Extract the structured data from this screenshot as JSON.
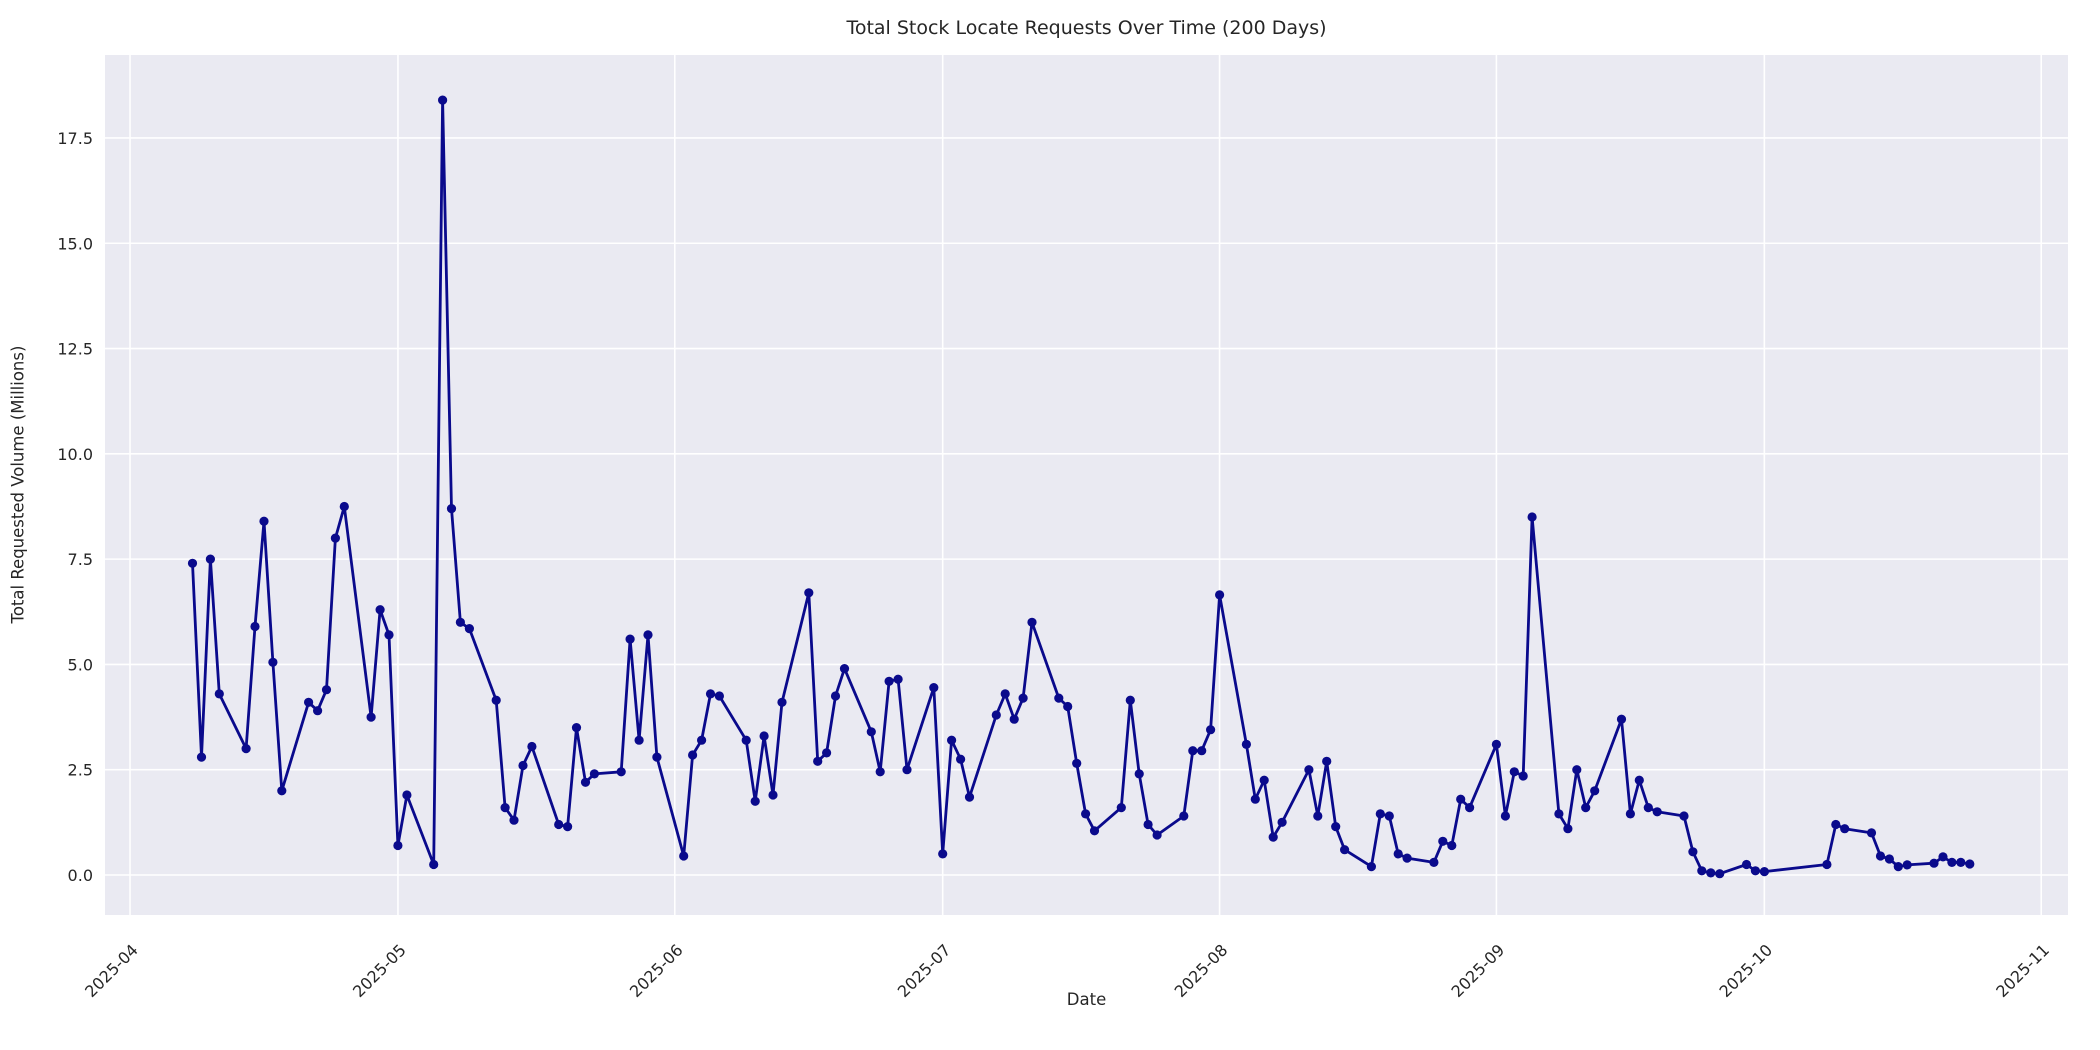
{
  "title": "Total Stock Locate Requests Over Time (200 Days)",
  "chart_data": {
    "type": "line",
    "title": "Total Stock Locate Requests Over Time (200 Days)",
    "xlabel": "Date",
    "ylabel": "Total Requested Volume (Millions)",
    "legend": "none",
    "grid": true,
    "background_color": "#eaeaf2",
    "gridline_color": "#ffffff",
    "line_color": "#0a0a8c",
    "text_color": "#262626",
    "marker": "o",
    "x_tick_labels": [
      "2025-04",
      "2025-05",
      "2025-06",
      "2025-07",
      "2025-08",
      "2025-09",
      "2025-10",
      "2025-11"
    ],
    "y_ticks": [
      0.0,
      2.5,
      5.0,
      7.5,
      10.0,
      12.5,
      15.0,
      17.5
    ],
    "ylim": [
      -0.95,
      19.47
    ],
    "xlim_days_from_2025_04_01": [
      -2.8,
      217.0
    ],
    "x": [
      "2025-04-08",
      "2025-04-09",
      "2025-04-10",
      "2025-04-11",
      "2025-04-14",
      "2025-04-15",
      "2025-04-16",
      "2025-04-17",
      "2025-04-18",
      "2025-04-21",
      "2025-04-22",
      "2025-04-23",
      "2025-04-24",
      "2025-04-25",
      "2025-04-28",
      "2025-04-29",
      "2025-04-30",
      "2025-05-01",
      "2025-05-02",
      "2025-05-05",
      "2025-05-06",
      "2025-05-07",
      "2025-05-08",
      "2025-05-09",
      "2025-05-12",
      "2025-05-13",
      "2025-05-14",
      "2025-05-15",
      "2025-05-16",
      "2025-05-19",
      "2025-05-20",
      "2025-05-21",
      "2025-05-22",
      "2025-05-23",
      "2025-05-26",
      "2025-05-27",
      "2025-05-28",
      "2025-05-29",
      "2025-05-30",
      "2025-06-02",
      "2025-06-03",
      "2025-06-04",
      "2025-06-05",
      "2025-06-06",
      "2025-06-09",
      "2025-06-10",
      "2025-06-11",
      "2025-06-12",
      "2025-06-13",
      "2025-06-16",
      "2025-06-17",
      "2025-06-18",
      "2025-06-19",
      "2025-06-20",
      "2025-06-23",
      "2025-06-24",
      "2025-06-25",
      "2025-06-26",
      "2025-06-27",
      "2025-06-30",
      "2025-07-01",
      "2025-07-02",
      "2025-07-03",
      "2025-07-04",
      "2025-07-07",
      "2025-07-08",
      "2025-07-09",
      "2025-07-10",
      "2025-07-11",
      "2025-07-14",
      "2025-07-15",
      "2025-07-16",
      "2025-07-17",
      "2025-07-18",
      "2025-07-21",
      "2025-07-22",
      "2025-07-23",
      "2025-07-24",
      "2025-07-25",
      "2025-07-28",
      "2025-07-29",
      "2025-07-30",
      "2025-07-31",
      "2025-08-01",
      "2025-08-04",
      "2025-08-05",
      "2025-08-06",
      "2025-08-07",
      "2025-08-08",
      "2025-08-11",
      "2025-08-12",
      "2025-08-13",
      "2025-08-14",
      "2025-08-15",
      "2025-08-18",
      "2025-08-19",
      "2025-08-20",
      "2025-08-21",
      "2025-08-22",
      "2025-08-25",
      "2025-08-26",
      "2025-08-27",
      "2025-08-28",
      "2025-08-29",
      "2025-09-01",
      "2025-09-02",
      "2025-09-03",
      "2025-09-04",
      "2025-09-05",
      "2025-09-08",
      "2025-09-09",
      "2025-09-10",
      "2025-09-11",
      "2025-09-12",
      "2025-09-15",
      "2025-09-16",
      "2025-09-17",
      "2025-09-18",
      "2025-09-19",
      "2025-09-22",
      "2025-09-23",
      "2025-09-24",
      "2025-09-25",
      "2025-09-26",
      "2025-09-29",
      "2025-09-30",
      "2025-10-01",
      "2025-10-08",
      "2025-10-09",
      "2025-10-10",
      "2025-10-13",
      "2025-10-14",
      "2025-10-15",
      "2025-10-16",
      "2025-10-17",
      "2025-10-20",
      "2025-10-21",
      "2025-10-22",
      "2025-10-23",
      "2025-10-24"
    ],
    "values": [
      7.4,
      2.8,
      7.5,
      4.3,
      3.0,
      5.9,
      8.4,
      5.05,
      2.0,
      4.1,
      3.9,
      4.4,
      8.0,
      8.75,
      3.75,
      6.3,
      5.7,
      0.7,
      1.9,
      0.25,
      18.4,
      8.7,
      6.0,
      5.85,
      4.15,
      1.6,
      1.3,
      2.6,
      3.05,
      1.2,
      1.15,
      3.5,
      2.2,
      2.4,
      2.45,
      5.6,
      3.2,
      5.7,
      2.8,
      0.45,
      2.85,
      3.2,
      4.3,
      4.25,
      3.2,
      1.75,
      3.3,
      1.9,
      4.1,
      6.7,
      2.7,
      2.9,
      4.25,
      4.9,
      3.4,
      2.45,
      4.6,
      4.65,
      2.5,
      4.45,
      0.5,
      3.2,
      2.75,
      1.85,
      3.8,
      4.3,
      3.7,
      4.2,
      6.0,
      4.2,
      4.0,
      2.65,
      1.45,
      1.05,
      1.6,
      4.15,
      2.4,
      1.2,
      0.95,
      1.4,
      2.95,
      2.95,
      3.45,
      6.65,
      3.1,
      1.8,
      2.25,
      0.9,
      1.25,
      2.5,
      1.4,
      2.7,
      1.15,
      0.6,
      0.2,
      1.45,
      1.4,
      0.5,
      0.4,
      0.3,
      0.8,
      0.7,
      1.8,
      1.6,
      3.1,
      1.4,
      2.45,
      2.35,
      8.5,
      1.45,
      1.1,
      2.5,
      1.6,
      2.0,
      3.7,
      1.45,
      2.25,
      1.6,
      1.5,
      1.4,
      0.55,
      0.1,
      0.05,
      0.03,
      0.25,
      0.1,
      0.08,
      0.25,
      1.2,
      1.1,
      1.0,
      0.45,
      0.38,
      0.2,
      0.24,
      0.28,
      0.43,
      0.3,
      0.3,
      0.26
    ]
  }
}
